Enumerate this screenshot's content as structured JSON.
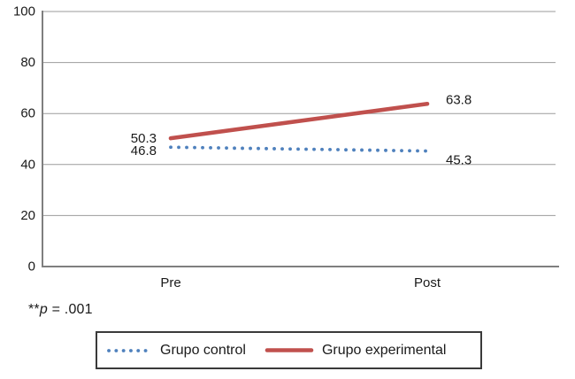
{
  "chart_data": {
    "type": "line",
    "title": "",
    "categories": [
      "Pre",
      "Post"
    ],
    "series": [
      {
        "name": "Grupo control",
        "values": [
          46.8,
          45.3
        ],
        "color": "#4f81bd",
        "style": "dotted",
        "label_dy": [
          4,
          10
        ]
      },
      {
        "name": "Grupo experimental",
        "values": [
          50.3,
          63.8
        ],
        "color": "#c0504d",
        "style": "solid",
        "label_dy": [
          0,
          -5
        ]
      }
    ],
    "point_labels": [
      "50.3",
      "46.8",
      "63.8",
      "45.3"
    ],
    "ylim": [
      0,
      100
    ],
    "yticks": [
      0,
      20,
      40,
      60,
      80,
      100
    ],
    "grid": true,
    "legend_position": "bottom",
    "colors": {
      "gridline": "#9b9b9b",
      "axis": "#7f7f7f",
      "text": "#1a1a1a",
      "background": "#ffffff",
      "legend_border": "#3a3a3a"
    }
  },
  "footnote": {
    "stars": "**",
    "symbol": "p",
    "rest": " = .001"
  }
}
